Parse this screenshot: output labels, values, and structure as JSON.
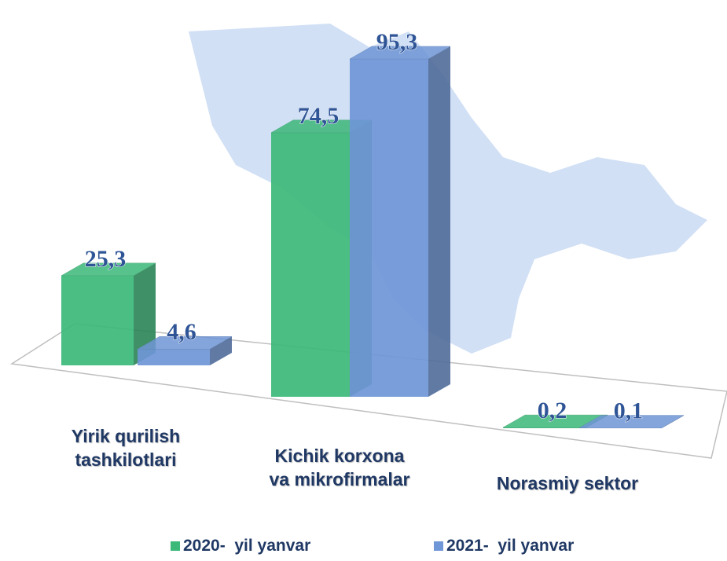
{
  "chart_data": {
    "type": "bar3d",
    "categories": [
      "Yirik qurilish\ntashkilotlari",
      "Kichik korxona\nva mikrofirmalar",
      "Norasmiy sektor"
    ],
    "series": [
      {
        "name": "2020-  yil yanvar",
        "color": "#3cb878",
        "values": [
          25.3,
          74.5,
          0.2
        ],
        "value_labels": [
          "25,3",
          "74,5",
          "0,2"
        ]
      },
      {
        "name": "2021-  yil yanvar",
        "color": "#6f96d6",
        "values": [
          4.6,
          95.3,
          0.1
        ],
        "value_labels": [
          "4,6",
          "95,3",
          "0,1"
        ]
      }
    ]
  }
}
